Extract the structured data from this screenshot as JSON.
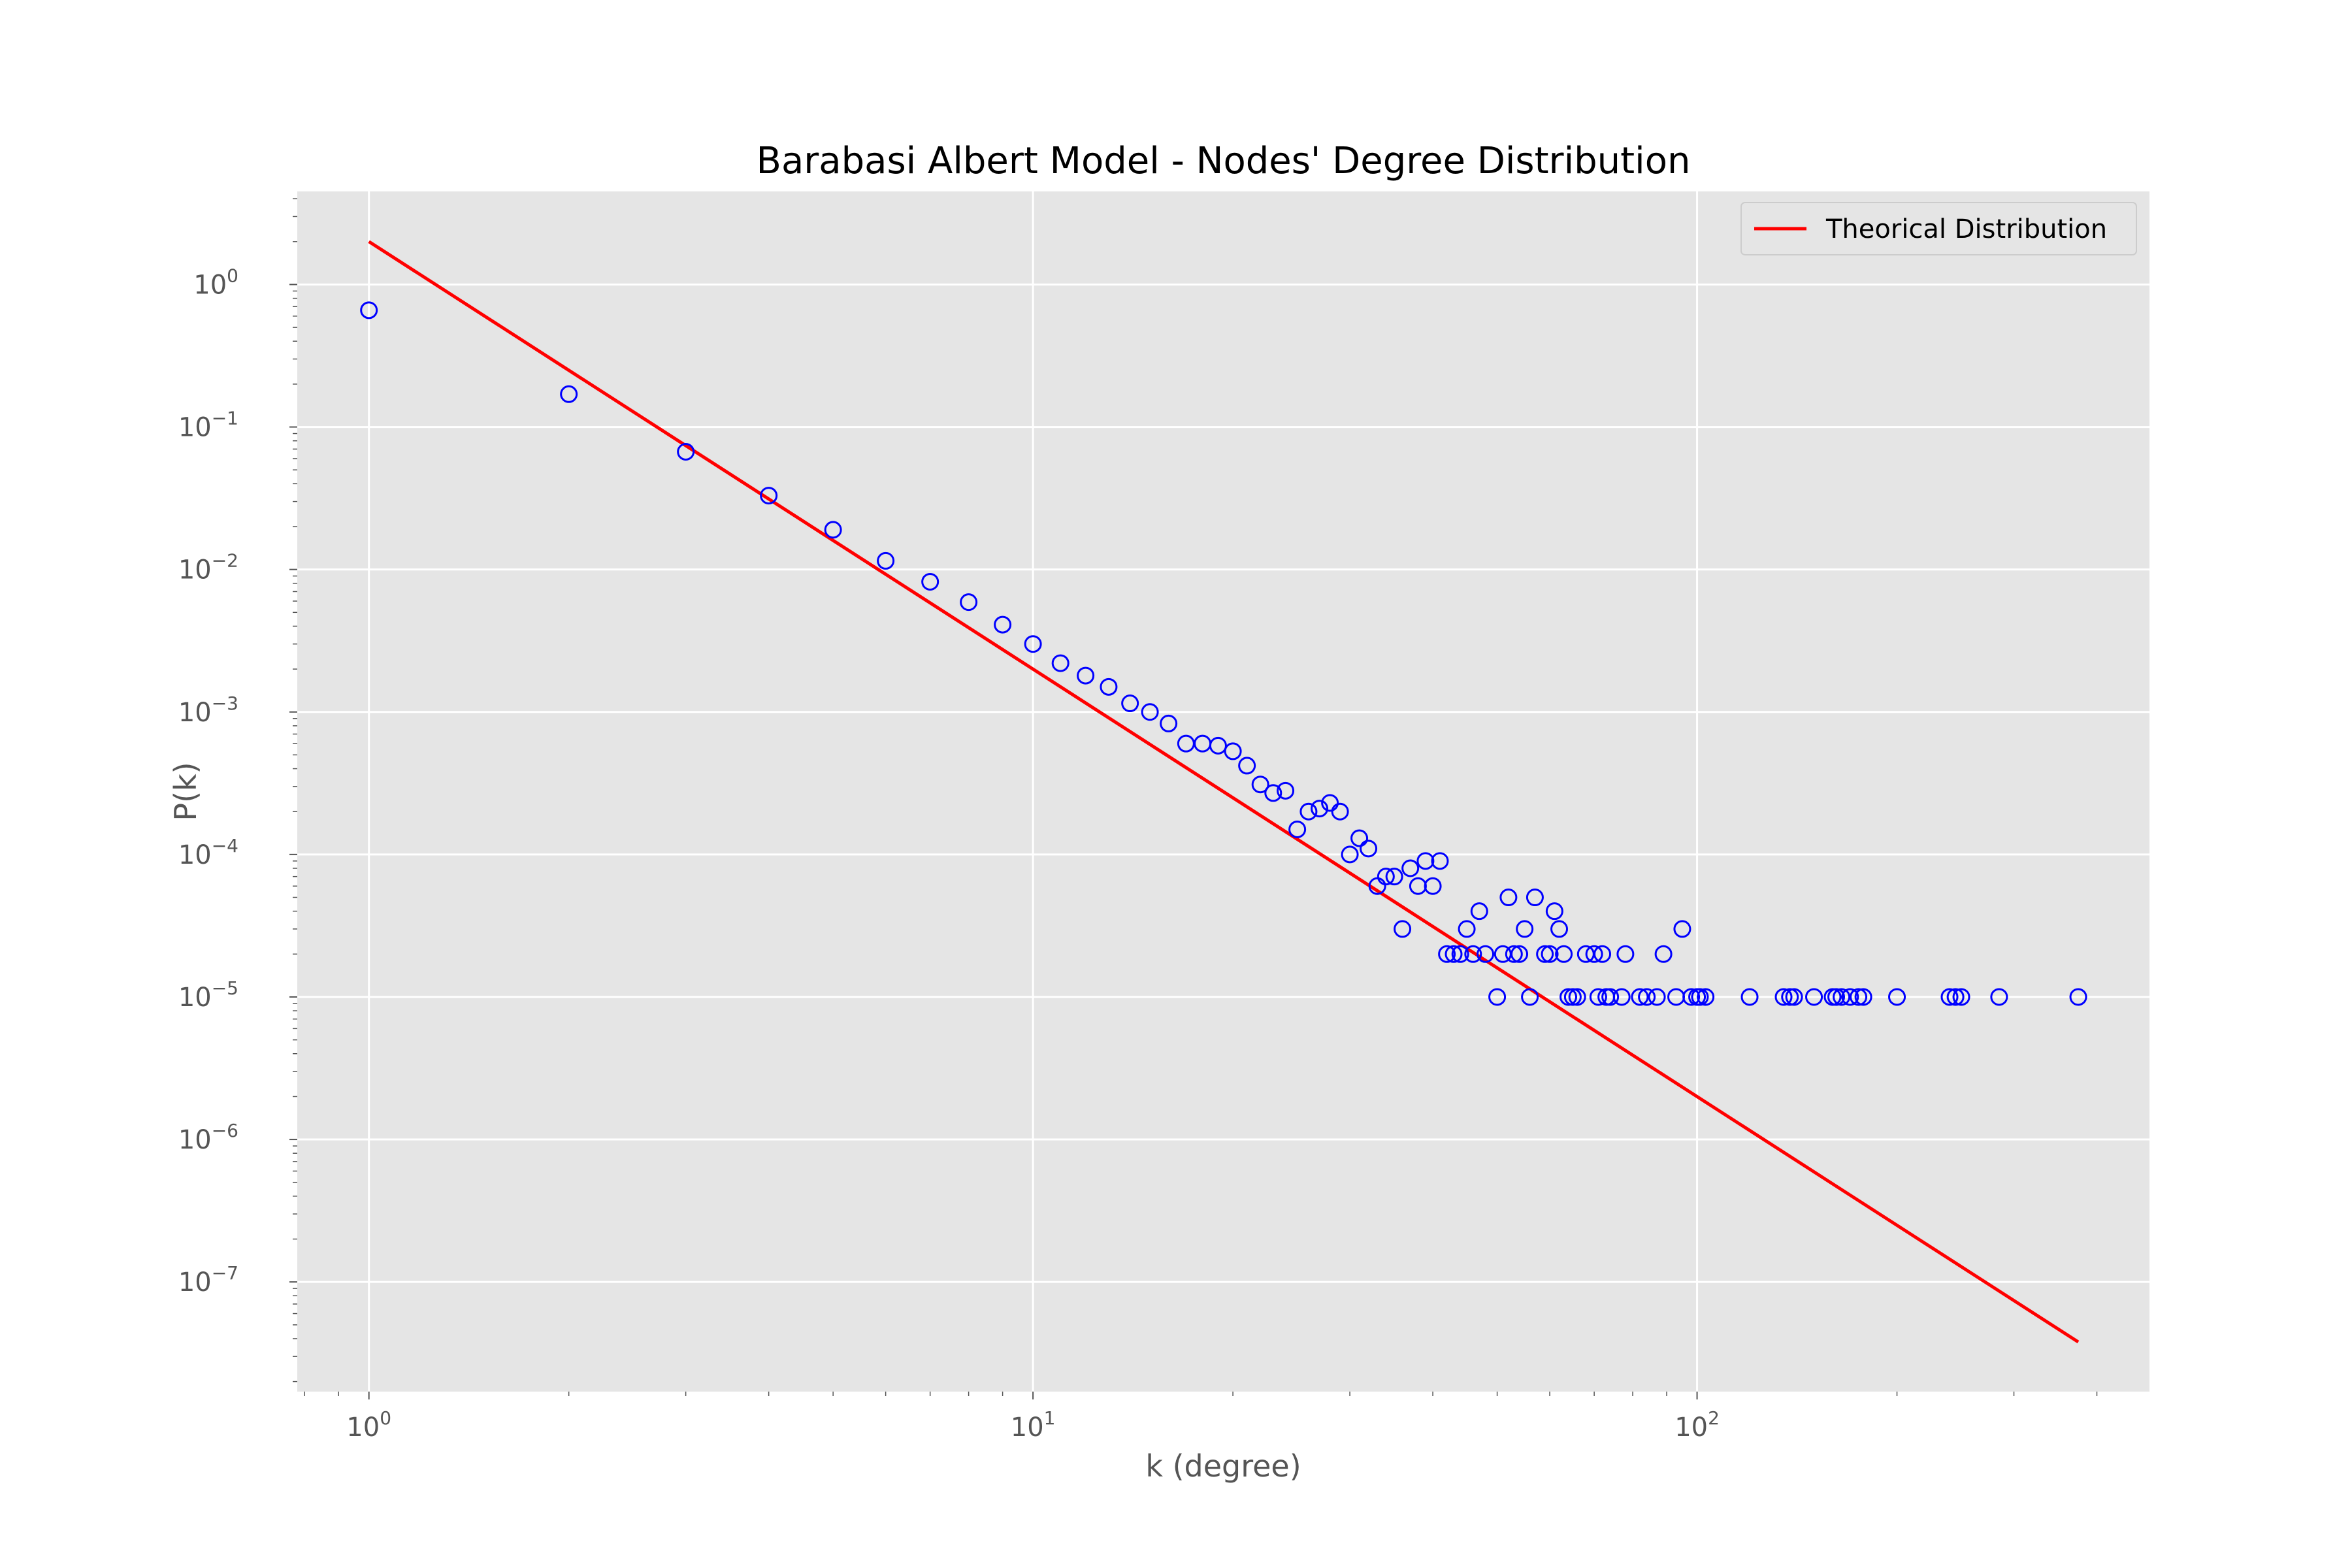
{
  "chart_data": {
    "type": "scatter",
    "title": "Barabasi Albert Model - Nodes' Degree Distribution",
    "xlabel": "k (degree)",
    "ylabel": "P(k)",
    "xscale": "log",
    "yscale": "log",
    "xlim": [
      0.78,
      480
    ],
    "ylim": [
      1.7e-08,
      4.5
    ],
    "grid": true,
    "legend_position": "top-right",
    "colors": {
      "plot_background": "#e5e5e5",
      "grid": "#ffffff",
      "tick_label": "#555555",
      "marker_edge": "#0000ff",
      "line": "#ff0000"
    },
    "x_ticks": [
      {
        "base": "10",
        "exp": "0",
        "value": 1
      },
      {
        "base": "10",
        "exp": "1",
        "value": 10
      },
      {
        "base": "10",
        "exp": "2",
        "value": 100
      }
    ],
    "y_ticks": [
      {
        "base": "10",
        "exp": "0",
        "value": 1
      },
      {
        "base": "10",
        "exp": "−1",
        "value": 0.1
      },
      {
        "base": "10",
        "exp": "−2",
        "value": 0.01
      },
      {
        "base": "10",
        "exp": "−3",
        "value": 0.001
      },
      {
        "base": "10",
        "exp": "−4",
        "value": 0.0001
      },
      {
        "base": "10",
        "exp": "−5",
        "value": 1e-05
      },
      {
        "base": "10",
        "exp": "−6",
        "value": 1e-06
      },
      {
        "base": "10",
        "exp": "−7",
        "value": 1e-07
      }
    ],
    "series": [
      {
        "type": "scatter",
        "marker": "open-circle",
        "points": [
          [
            1,
            0.66
          ],
          [
            2,
            0.17
          ],
          [
            3,
            0.067
          ],
          [
            4,
            0.033
          ],
          [
            5,
            0.019
          ],
          [
            6,
            0.0115
          ],
          [
            7,
            0.0082
          ],
          [
            8,
            0.0059
          ],
          [
            9,
            0.0041
          ],
          [
            10,
            0.003
          ],
          [
            11,
            0.0022
          ],
          [
            12,
            0.0018
          ],
          [
            13,
            0.0015
          ],
          [
            14,
            0.00115
          ],
          [
            15,
            0.001
          ],
          [
            16,
            0.00083
          ],
          [
            17,
            0.0006
          ],
          [
            18,
            0.0006
          ],
          [
            19,
            0.00058
          ],
          [
            20,
            0.00053
          ],
          [
            21,
            0.00042
          ],
          [
            22,
            0.00031
          ],
          [
            23,
            0.00027
          ],
          [
            24,
            0.00028
          ],
          [
            25,
            0.00015
          ],
          [
            26,
            0.0002
          ],
          [
            27,
            0.00021
          ],
          [
            28,
            0.00023
          ],
          [
            29,
            0.0002
          ],
          [
            30,
            0.0001
          ],
          [
            31,
            0.00013
          ],
          [
            32,
            0.00011
          ],
          [
            33,
            6e-05
          ],
          [
            34,
            7e-05
          ],
          [
            35,
            7e-05
          ],
          [
            36,
            3e-05
          ],
          [
            37,
            8e-05
          ],
          [
            38,
            6e-05
          ],
          [
            39,
            9e-05
          ],
          [
            40,
            6e-05
          ],
          [
            41,
            9e-05
          ],
          [
            42,
            2e-05
          ],
          [
            43,
            2e-05
          ],
          [
            44,
            2e-05
          ],
          [
            45,
            3e-05
          ],
          [
            46,
            2e-05
          ],
          [
            47,
            4e-05
          ],
          [
            48,
            2e-05
          ],
          [
            50,
            1e-05
          ],
          [
            51,
            2e-05
          ],
          [
            52,
            5e-05
          ],
          [
            53,
            2e-05
          ],
          [
            54,
            2e-05
          ],
          [
            55,
            3e-05
          ],
          [
            56,
            1e-05
          ],
          [
            57,
            5e-05
          ],
          [
            59,
            2e-05
          ],
          [
            60,
            2e-05
          ],
          [
            61,
            4e-05
          ],
          [
            62,
            3e-05
          ],
          [
            63,
            2e-05
          ],
          [
            64,
            1e-05
          ],
          [
            65,
            1e-05
          ],
          [
            66,
            1e-05
          ],
          [
            68,
            2e-05
          ],
          [
            70,
            2e-05
          ],
          [
            71,
            1e-05
          ],
          [
            72,
            2e-05
          ],
          [
            73,
            1e-05
          ],
          [
            74,
            1e-05
          ],
          [
            77,
            1e-05
          ],
          [
            78,
            2e-05
          ],
          [
            82,
            1e-05
          ],
          [
            84,
            1e-05
          ],
          [
            87,
            1e-05
          ],
          [
            89,
            2e-05
          ],
          [
            93,
            1e-05
          ],
          [
            95,
            3e-05
          ],
          [
            98,
            1e-05
          ],
          [
            100,
            1e-05
          ],
          [
            101,
            1e-05
          ],
          [
            103,
            1e-05
          ],
          [
            120,
            1e-05
          ],
          [
            135,
            1e-05
          ],
          [
            138,
            1e-05
          ],
          [
            140,
            1e-05
          ],
          [
            150,
            1e-05
          ],
          [
            160,
            1e-05
          ],
          [
            162,
            1e-05
          ],
          [
            165,
            1e-05
          ],
          [
            170,
            1e-05
          ],
          [
            175,
            1e-05
          ],
          [
            178,
            1e-05
          ],
          [
            200,
            1e-05
          ],
          [
            240,
            1e-05
          ],
          [
            245,
            1e-05
          ],
          [
            250,
            1e-05
          ],
          [
            285,
            1e-05
          ],
          [
            375,
            1e-05
          ]
        ]
      },
      {
        "name": "Theorical Distribution",
        "type": "line",
        "x": [
          1,
          375
        ],
        "y": [
          2.0,
          3.79e-08
        ]
      }
    ]
  }
}
